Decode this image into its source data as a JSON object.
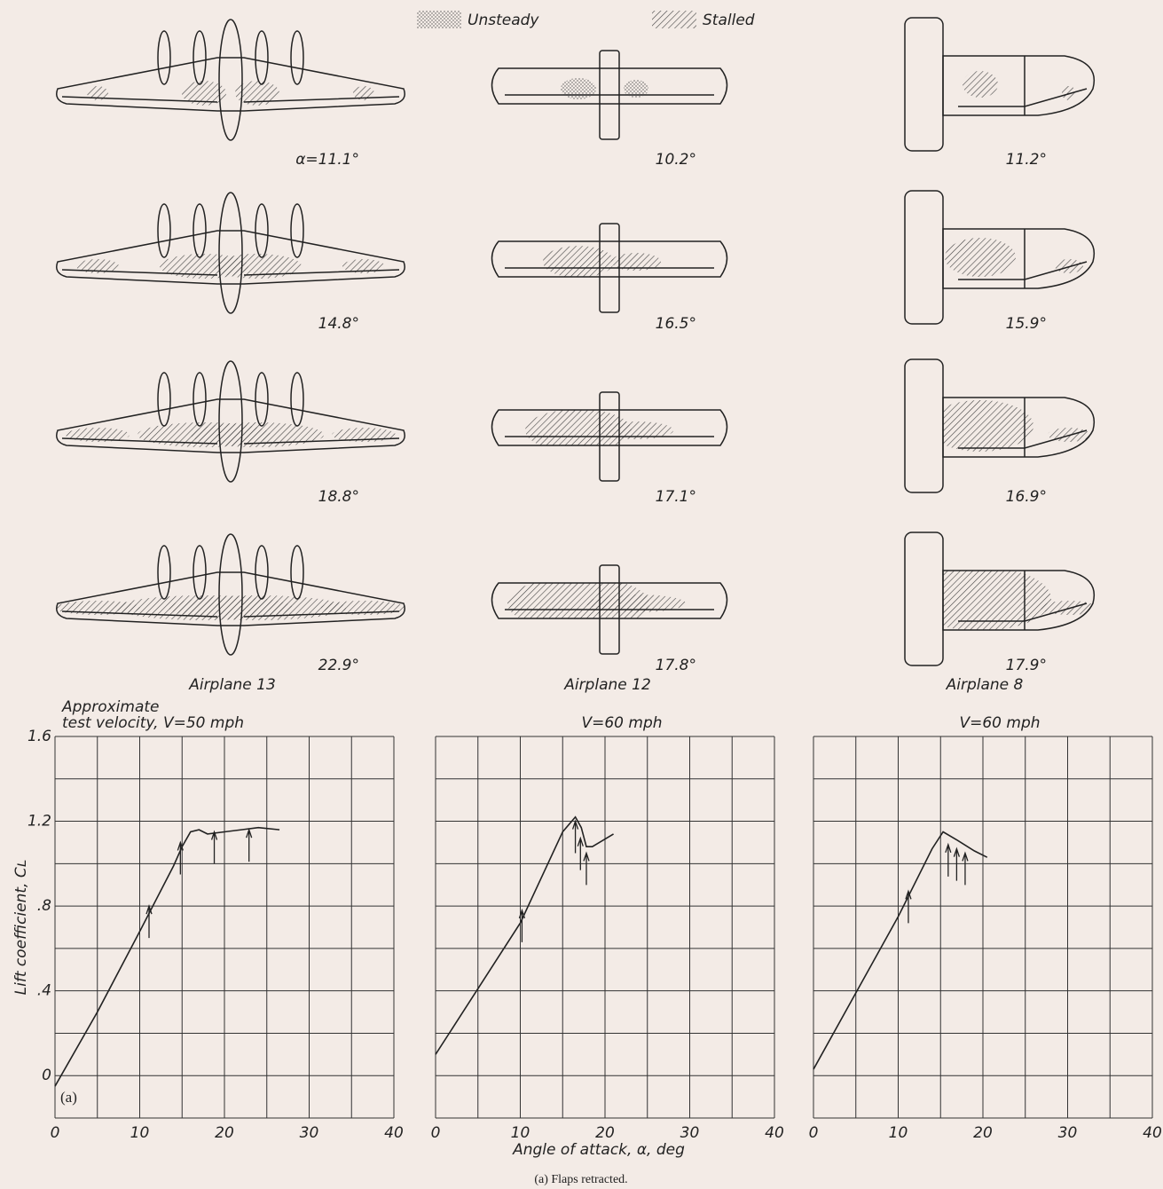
{
  "legend": {
    "unsteady": "Unsteady",
    "stalled": "Stalled"
  },
  "airplanes": [
    {
      "name": "Airplane 13",
      "angles": [
        "α=11.1°",
        "14.8°",
        "18.8°",
        "22.9°"
      ]
    },
    {
      "name": "Airplane 12",
      "angles": [
        "10.2°",
        "16.5°",
        "17.1°",
        "17.8°"
      ]
    },
    {
      "name": "Airplane 8",
      "angles": [
        "11.2°",
        "15.9°",
        "16.9°",
        "17.9°"
      ]
    }
  ],
  "caption": "(a) Flaps retracted.",
  "chart_data": [
    {
      "type": "line",
      "title": [
        "Approximate",
        "test velocity, V=50 mph"
      ],
      "ylabel": "Lift coefficient, Cʟ",
      "annotation": "(a)",
      "x": [
        0,
        5,
        10,
        14,
        15,
        16,
        17,
        18,
        20,
        22,
        24,
        26.5
      ],
      "values": [
        -0.05,
        0.3,
        0.68,
        0.99,
        1.08,
        1.15,
        1.16,
        1.14,
        1.15,
        1.16,
        1.17,
        1.16
      ],
      "arrows": {
        "x": [
          11.1,
          14.8,
          18.8,
          22.9
        ],
        "values": [
          0.8,
          1.1,
          1.15,
          1.16
        ]
      },
      "color": "#222",
      "xlim": [
        0,
        40
      ],
      "ylim": [
        -0.2,
        1.6
      ],
      "xticks": [
        0,
        10,
        20,
        30,
        40
      ],
      "yticks": [
        0,
        {
          "value": 0.4,
          "label": ".4"
        },
        {
          "value": 0.8,
          "label": ".8"
        },
        1.2,
        1.6
      ],
      "xgrid": [
        0,
        5,
        10,
        15,
        20,
        25,
        30,
        35,
        40
      ],
      "ygrid": [
        -0.2,
        0,
        0.2,
        0.4,
        0.6,
        0.8,
        1.0,
        1.2,
        1.4,
        1.6
      ]
    },
    {
      "type": "line",
      "title": [
        "V=60 mph"
      ],
      "xlabel": "Angle of attack, α, deg",
      "x": [
        0,
        10,
        15,
        16.5,
        17.2,
        17.8,
        18.5,
        21
      ],
      "values": [
        0.1,
        0.72,
        1.15,
        1.22,
        1.17,
        1.08,
        1.08,
        1.14
      ],
      "arrows": {
        "x": [
          10.2,
          16.5,
          17.1,
          17.8
        ],
        "values": [
          0.78,
          1.2,
          1.12,
          1.05
        ]
      },
      "color": "#222",
      "xlim": [
        0,
        40
      ],
      "ylim": [
        -0.2,
        1.6
      ],
      "xticks": [
        0,
        10,
        20,
        30,
        40
      ],
      "xgrid": [
        0,
        5,
        10,
        15,
        20,
        25,
        30,
        35,
        40
      ],
      "ygrid": [
        -0.2,
        0,
        0.2,
        0.4,
        0.6,
        0.8,
        1.0,
        1.2,
        1.4,
        1.6
      ]
    },
    {
      "type": "line",
      "title": [
        "V=60 mph"
      ],
      "x": [
        0,
        10,
        14,
        15.3,
        17,
        19,
        20.5
      ],
      "values": [
        0.03,
        0.75,
        1.07,
        1.15,
        1.11,
        1.06,
        1.03
      ],
      "arrows": {
        "x": [
          11.2,
          15.9,
          16.9,
          17.9
        ],
        "values": [
          0.87,
          1.09,
          1.07,
          1.05
        ]
      },
      "color": "#222",
      "xlim": [
        0,
        40
      ],
      "ylim": [
        -0.2,
        1.6
      ],
      "xticks": [
        0,
        10,
        20,
        30,
        40
      ],
      "xgrid": [
        0,
        5,
        10,
        15,
        20,
        25,
        30,
        35,
        40
      ],
      "ygrid": [
        -0.2,
        0,
        0.2,
        0.4,
        0.6,
        0.8,
        1.0,
        1.2,
        1.4,
        1.6
      ]
    }
  ]
}
